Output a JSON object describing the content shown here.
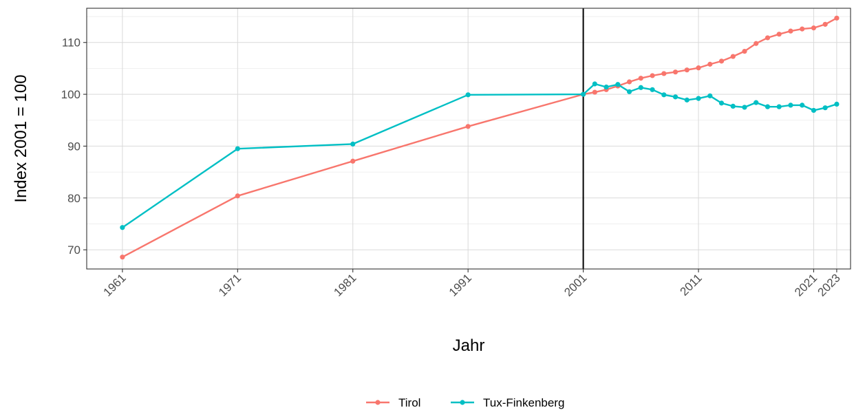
{
  "chart_data": {
    "type": "line",
    "xlabel": "Jahr",
    "ylabel": "Index 2001 = 100",
    "xlim": [
      1957.9,
      2024.2
    ],
    "ylim": [
      66.3,
      116.6
    ],
    "x_ticks": [
      1961,
      1971,
      1981,
      1991,
      2001,
      2011,
      2021,
      2023
    ],
    "y_ticks": [
      70,
      80,
      90,
      100,
      110
    ],
    "y_minor_ticks": [
      75,
      85,
      95,
      105,
      115
    ],
    "reference_line_x": 2001,
    "grid": true,
    "legend_position": "bottom",
    "series": [
      {
        "name": "Tirol",
        "color": "#F8766D",
        "points": [
          [
            1961,
            68.6
          ],
          [
            1971,
            80.4
          ],
          [
            1981,
            87.1
          ],
          [
            1991,
            93.8
          ],
          [
            2001,
            100.0
          ],
          [
            2002,
            100.4
          ],
          [
            2003,
            100.9
          ],
          [
            2004,
            101.6
          ],
          [
            2005,
            102.4
          ],
          [
            2006,
            103.1
          ],
          [
            2007,
            103.6
          ],
          [
            2008,
            104.0
          ],
          [
            2009,
            104.3
          ],
          [
            2010,
            104.7
          ],
          [
            2011,
            105.1
          ],
          [
            2012,
            105.8
          ],
          [
            2013,
            106.4
          ],
          [
            2014,
            107.3
          ],
          [
            2015,
            108.3
          ],
          [
            2016,
            109.8
          ],
          [
            2017,
            110.9
          ],
          [
            2018,
            111.6
          ],
          [
            2019,
            112.2
          ],
          [
            2020,
            112.6
          ],
          [
            2021,
            112.8
          ],
          [
            2022,
            113.5
          ],
          [
            2023,
            114.7
          ]
        ]
      },
      {
        "name": "Tux-Finkenberg",
        "color": "#00BFC4",
        "points": [
          [
            1961,
            74.3
          ],
          [
            1971,
            89.5
          ],
          [
            1981,
            90.4
          ],
          [
            1991,
            99.9
          ],
          [
            2001,
            100.0
          ],
          [
            2002,
            102.0
          ],
          [
            2003,
            101.4
          ],
          [
            2004,
            101.9
          ],
          [
            2005,
            100.5
          ],
          [
            2006,
            101.3
          ],
          [
            2007,
            100.9
          ],
          [
            2008,
            99.9
          ],
          [
            2009,
            99.5
          ],
          [
            2010,
            98.9
          ],
          [
            2011,
            99.2
          ],
          [
            2012,
            99.7
          ],
          [
            2013,
            98.3
          ],
          [
            2014,
            97.7
          ],
          [
            2015,
            97.5
          ],
          [
            2016,
            98.4
          ],
          [
            2017,
            97.6
          ],
          [
            2018,
            97.6
          ],
          [
            2019,
            97.9
          ],
          [
            2020,
            97.9
          ],
          [
            2021,
            96.9
          ],
          [
            2022,
            97.4
          ],
          [
            2023,
            98.1
          ]
        ]
      }
    ]
  }
}
